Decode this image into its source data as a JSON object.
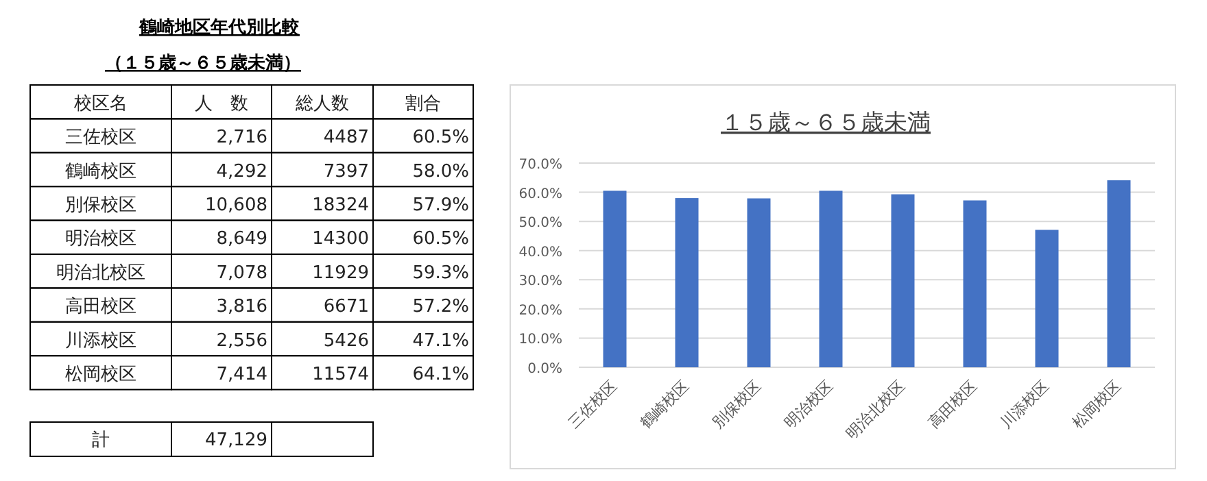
{
  "chart_data": [
    {
      "type": "other",
      "title": "鶴崎地区年代別比較",
      "subtitle": "（１５歳～６５歳未満）",
      "annotations": [
        "校区名",
        "人　数",
        "総人数",
        "割合",
        "三佐校区",
        "2,716",
        "4487",
        "60.5%",
        "鶴崎校区",
        "4,292",
        "7397",
        "58.0%",
        "別保校区",
        "10,608",
        "18324",
        "57.9%",
        "明治校区",
        "8,649",
        "14300",
        "60.5%",
        "明治北校区",
        "7,078",
        "11929",
        "59.3%",
        "高田校区",
        "3,816",
        "6671",
        "57.2%",
        "川添校区",
        "2,556",
        "5426",
        "47.1%",
        "松岡校区",
        "7,414",
        "11574",
        "64.1%",
        "計",
        "47,129"
      ]
    },
    {
      "type": "bar",
      "title": "１５歳～６５歳未満",
      "categories": [
        "三佐校区",
        "鶴崎校区",
        "別保校区",
        "明治校区",
        "明治北校区",
        "高田校区",
        "川添校区",
        "松岡校区"
      ],
      "values": [
        60.5,
        58.0,
        57.9,
        60.5,
        59.3,
        57.2,
        47.1,
        64.1
      ],
      "color": "#4472c4",
      "ylim": [
        0,
        70
      ],
      "yticks": [
        {
          "value": 0,
          "label": "0.0%"
        },
        {
          "value": 10,
          "label": "10.0%"
        },
        {
          "value": 20,
          "label": "20.0%"
        },
        {
          "value": 30,
          "label": "30.0%"
        },
        {
          "value": 40,
          "label": "40.0%"
        },
        {
          "value": 50,
          "label": "50.0%"
        },
        {
          "value": 60,
          "label": "60.0%"
        },
        {
          "value": 70,
          "label": "70.0%"
        }
      ],
      "grid": "y"
    }
  ]
}
